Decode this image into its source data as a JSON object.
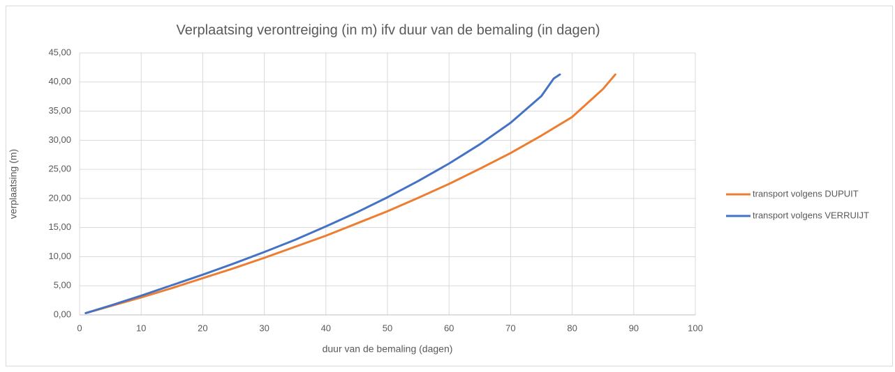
{
  "chart_data": {
    "type": "line",
    "title": "Verplaatsing verontreiging (in m) ifv duur van de bemaling (in dagen)",
    "xlabel": "duur van de bemaling (dagen)",
    "ylabel": "verplaatsing  (m)",
    "xlim": [
      0,
      100
    ],
    "xticks": [
      0,
      10,
      20,
      30,
      40,
      50,
      60,
      70,
      80,
      90,
      100
    ],
    "ylim": [
      0,
      45
    ],
    "yticks": [
      {
        "value": 0,
        "label": "0,00"
      },
      {
        "value": 5,
        "label": "5,00"
      },
      {
        "value": 10,
        "label": "10,00"
      },
      {
        "value": 15,
        "label": "15,00"
      },
      {
        "value": 20,
        "label": "20,00"
      },
      {
        "value": 25,
        "label": "25,00"
      },
      {
        "value": 30,
        "label": "30,00"
      },
      {
        "value": 35,
        "label": "35,00"
      },
      {
        "value": 40,
        "label": "40,00"
      },
      {
        "value": 45,
        "label": "45,00"
      }
    ],
    "grid": true,
    "legend": "right",
    "series": [
      {
        "name": "transport volgens DUPUIT",
        "color": "#ed7d31",
        "x": [
          1,
          5,
          10,
          15,
          20,
          25,
          30,
          35,
          40,
          45,
          50,
          55,
          60,
          65,
          70,
          75,
          80,
          85,
          87
        ],
        "values": [
          0.3,
          1.5,
          3.0,
          4.6,
          6.3,
          8.0,
          9.8,
          11.7,
          13.6,
          15.7,
          17.8,
          20.1,
          22.5,
          25.1,
          27.8,
          30.8,
          34.0,
          38.8,
          41.3
        ]
      },
      {
        "name": "transport volgens VERRUIJT",
        "color": "#4472c4",
        "x": [
          1,
          5,
          10,
          15,
          20,
          25,
          30,
          35,
          40,
          45,
          50,
          55,
          60,
          65,
          70,
          75,
          77,
          78
        ],
        "values": [
          0.3,
          1.6,
          3.3,
          5.1,
          6.9,
          8.8,
          10.8,
          12.9,
          15.2,
          17.6,
          20.2,
          23.0,
          26.0,
          29.3,
          33.0,
          37.6,
          40.6,
          41.3
        ]
      }
    ]
  }
}
